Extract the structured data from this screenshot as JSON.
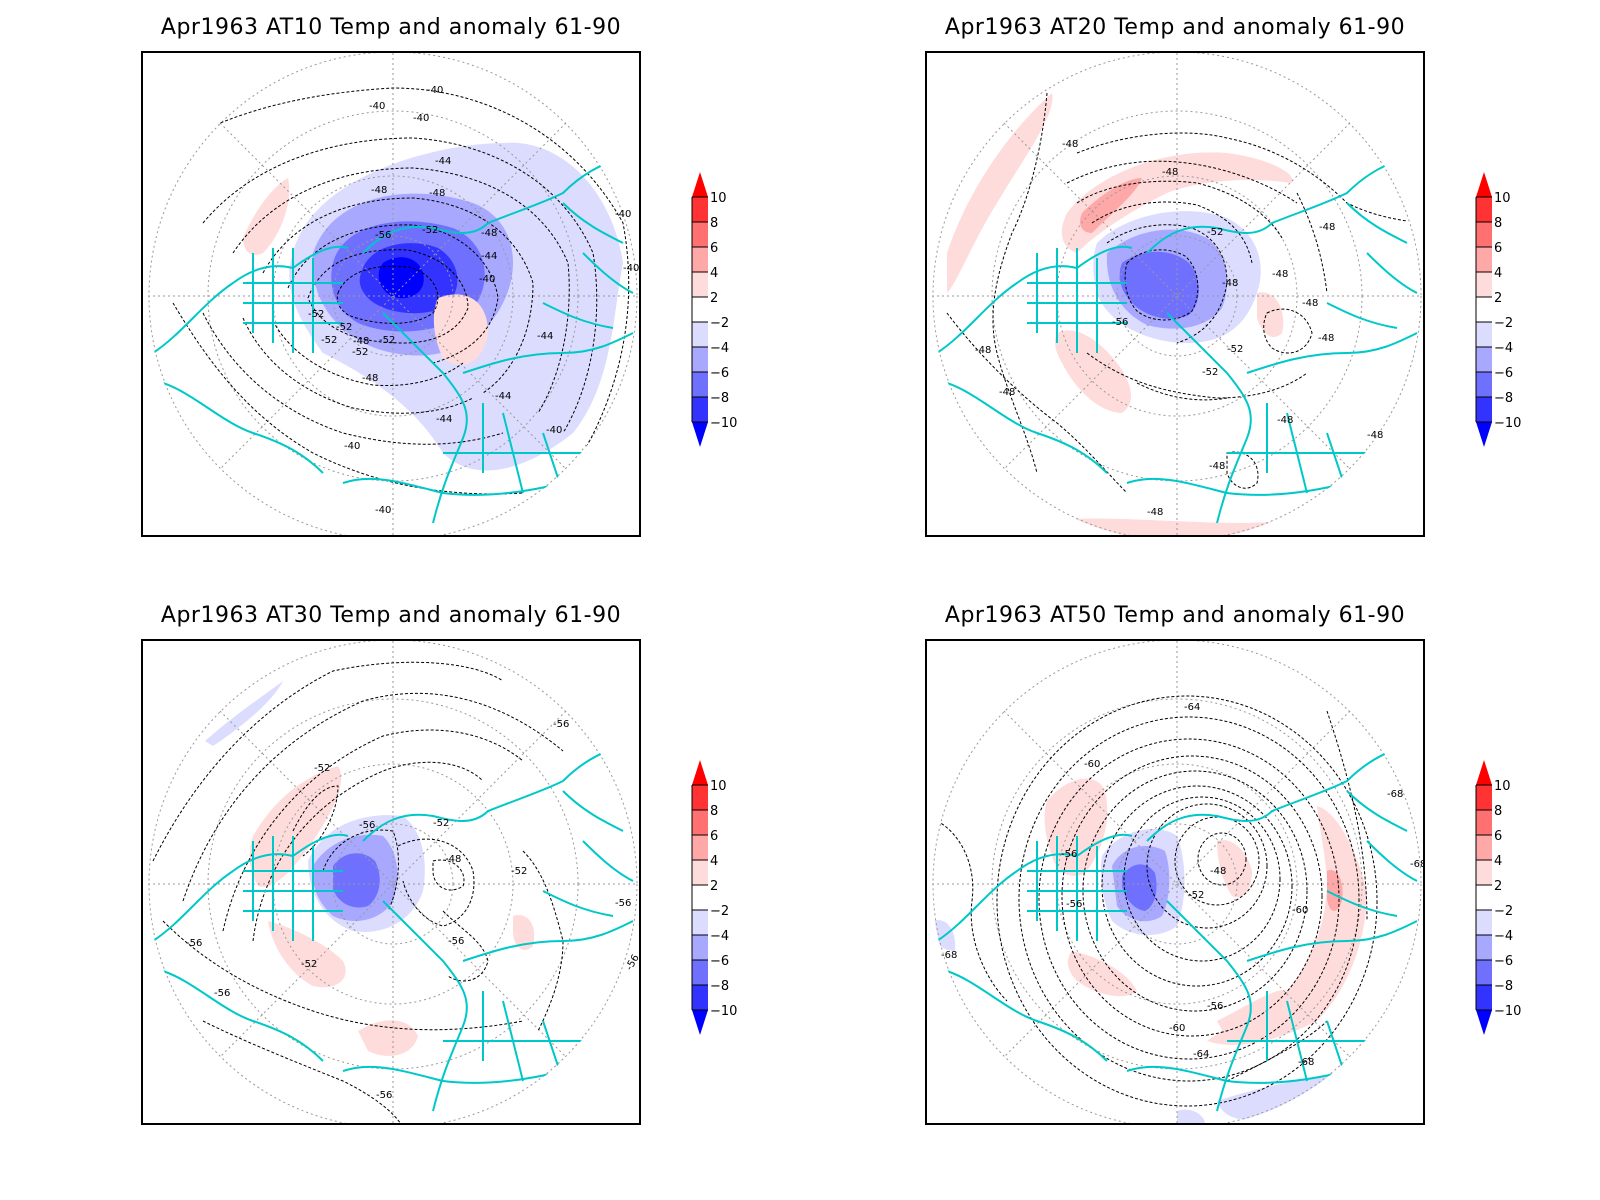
{
  "colorbar": {
    "levels": [
      "10",
      "8",
      "6",
      "4",
      "2",
      "-2",
      "-4",
      "-6",
      "-8",
      "-10"
    ],
    "colors": {
      "above_10": "#ff0000",
      "8_10": "#ff3333",
      "6_8": "#ff7070",
      "4_6": "#ffa8a8",
      "2_4": "#ffdcdc",
      "neg2_2": "#ffffff",
      "neg4_neg2": "#dcdcff",
      "neg6_neg4": "#a8a8ff",
      "neg8_neg6": "#7070ff",
      "neg10_neg8": "#3333ff",
      "below_neg10": "#0000ff"
    }
  },
  "colors": {
    "coastline": "#00c8c8",
    "contour": "#000000",
    "graticule": "#999999"
  },
  "panels": [
    {
      "id": "at10",
      "title": "Apr1963 AT10 Temp and anomaly 61-90",
      "contour_labels": [
        "-40",
        "-40",
        "-40",
        "-44",
        "-48",
        "-48",
        "-56",
        "-52",
        "-48",
        "-44",
        "-40",
        "-40",
        "-40",
        "-52",
        "-52",
        "-52",
        "-48",
        "-52",
        "-52",
        "-48",
        "-44",
        "-44",
        "-44",
        "-40",
        "-40",
        "-40"
      ]
    },
    {
      "id": "at20",
      "title": "Apr1963 AT20 Temp and anomaly 61-90",
      "contour_labels": [
        "-48",
        "-48",
        "-52",
        "-48",
        "-48",
        "-48",
        "-48",
        "-56",
        "-48",
        "-48",
        "-52",
        "-52",
        "-48",
        "-48",
        "-48",
        "-48",
        "-48"
      ]
    },
    {
      "id": "at30",
      "title": "Apr1963 AT30 Temp and anomaly 61-90",
      "contour_labels": [
        "-56",
        "-52",
        "-56",
        "-52",
        "-48",
        "-52",
        "-56",
        "-52",
        "-56",
        "-56",
        "-56",
        "-56",
        "-56"
      ]
    },
    {
      "id": "at50",
      "title": "Apr1963 AT50 Temp and anomaly 61-90",
      "contour_labels": [
        "-64",
        "-60",
        "-68",
        "-68",
        "-56",
        "-48",
        "-56",
        "-52",
        "-60",
        "-68",
        "-56",
        "-60",
        "-64",
        "-68"
      ]
    }
  ]
}
